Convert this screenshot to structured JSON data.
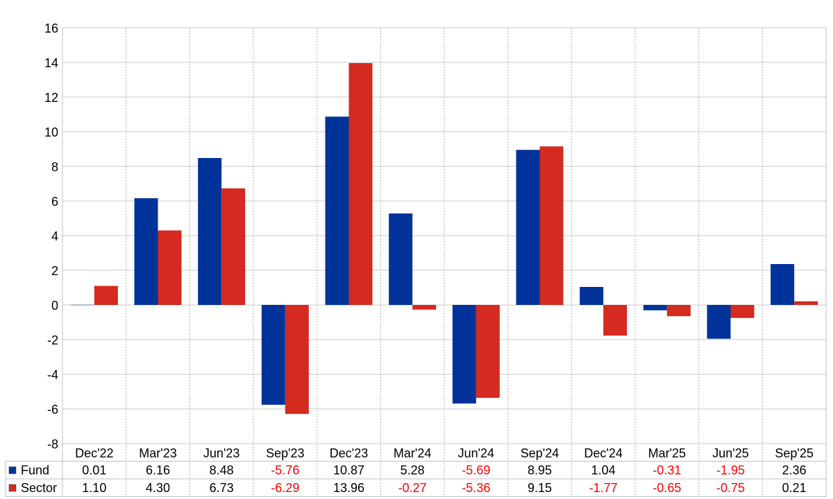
{
  "chart_data": {
    "type": "bar",
    "categories": [
      "Dec'22",
      "Mar'23",
      "Jun'23",
      "Sep'23",
      "Dec'23",
      "Mar'24",
      "Jun'24",
      "Sep'24",
      "Dec'24",
      "Mar'25",
      "Jun'25",
      "Sep'25"
    ],
    "series": [
      {
        "name": "Fund",
        "color": "#003399",
        "values": [
          0.01,
          6.16,
          8.48,
          -5.76,
          10.87,
          5.28,
          -5.69,
          8.95,
          1.04,
          -0.31,
          -1.95,
          2.36
        ],
        "labels": [
          "0.01",
          "6.16",
          "8.48",
          "-5.76",
          "10.87",
          "5.28",
          "-5.69",
          "8.95",
          "1.04",
          "-0.31",
          "-1.95",
          "2.36"
        ]
      },
      {
        "name": "Sector",
        "color": "#d42a20",
        "values": [
          1.1,
          4.3,
          6.73,
          -6.29,
          13.96,
          -0.27,
          -5.36,
          9.15,
          -1.77,
          -0.65,
          -0.75,
          0.21
        ],
        "labels": [
          "1.10",
          "4.30",
          "6.73",
          "-6.29",
          "13.96",
          "-0.27",
          "-5.36",
          "9.15",
          "-1.77",
          "-0.65",
          "-0.75",
          "0.21"
        ]
      }
    ],
    "ylim": [
      -8,
      16
    ],
    "yticks": [
      "16",
      "14",
      "12",
      "10",
      "8",
      "6",
      "4",
      "2",
      "0",
      "-2",
      "-4",
      "-6",
      "-8"
    ],
    "grid": true,
    "legend": "table-below",
    "negative_label_color": "#ff0000"
  }
}
